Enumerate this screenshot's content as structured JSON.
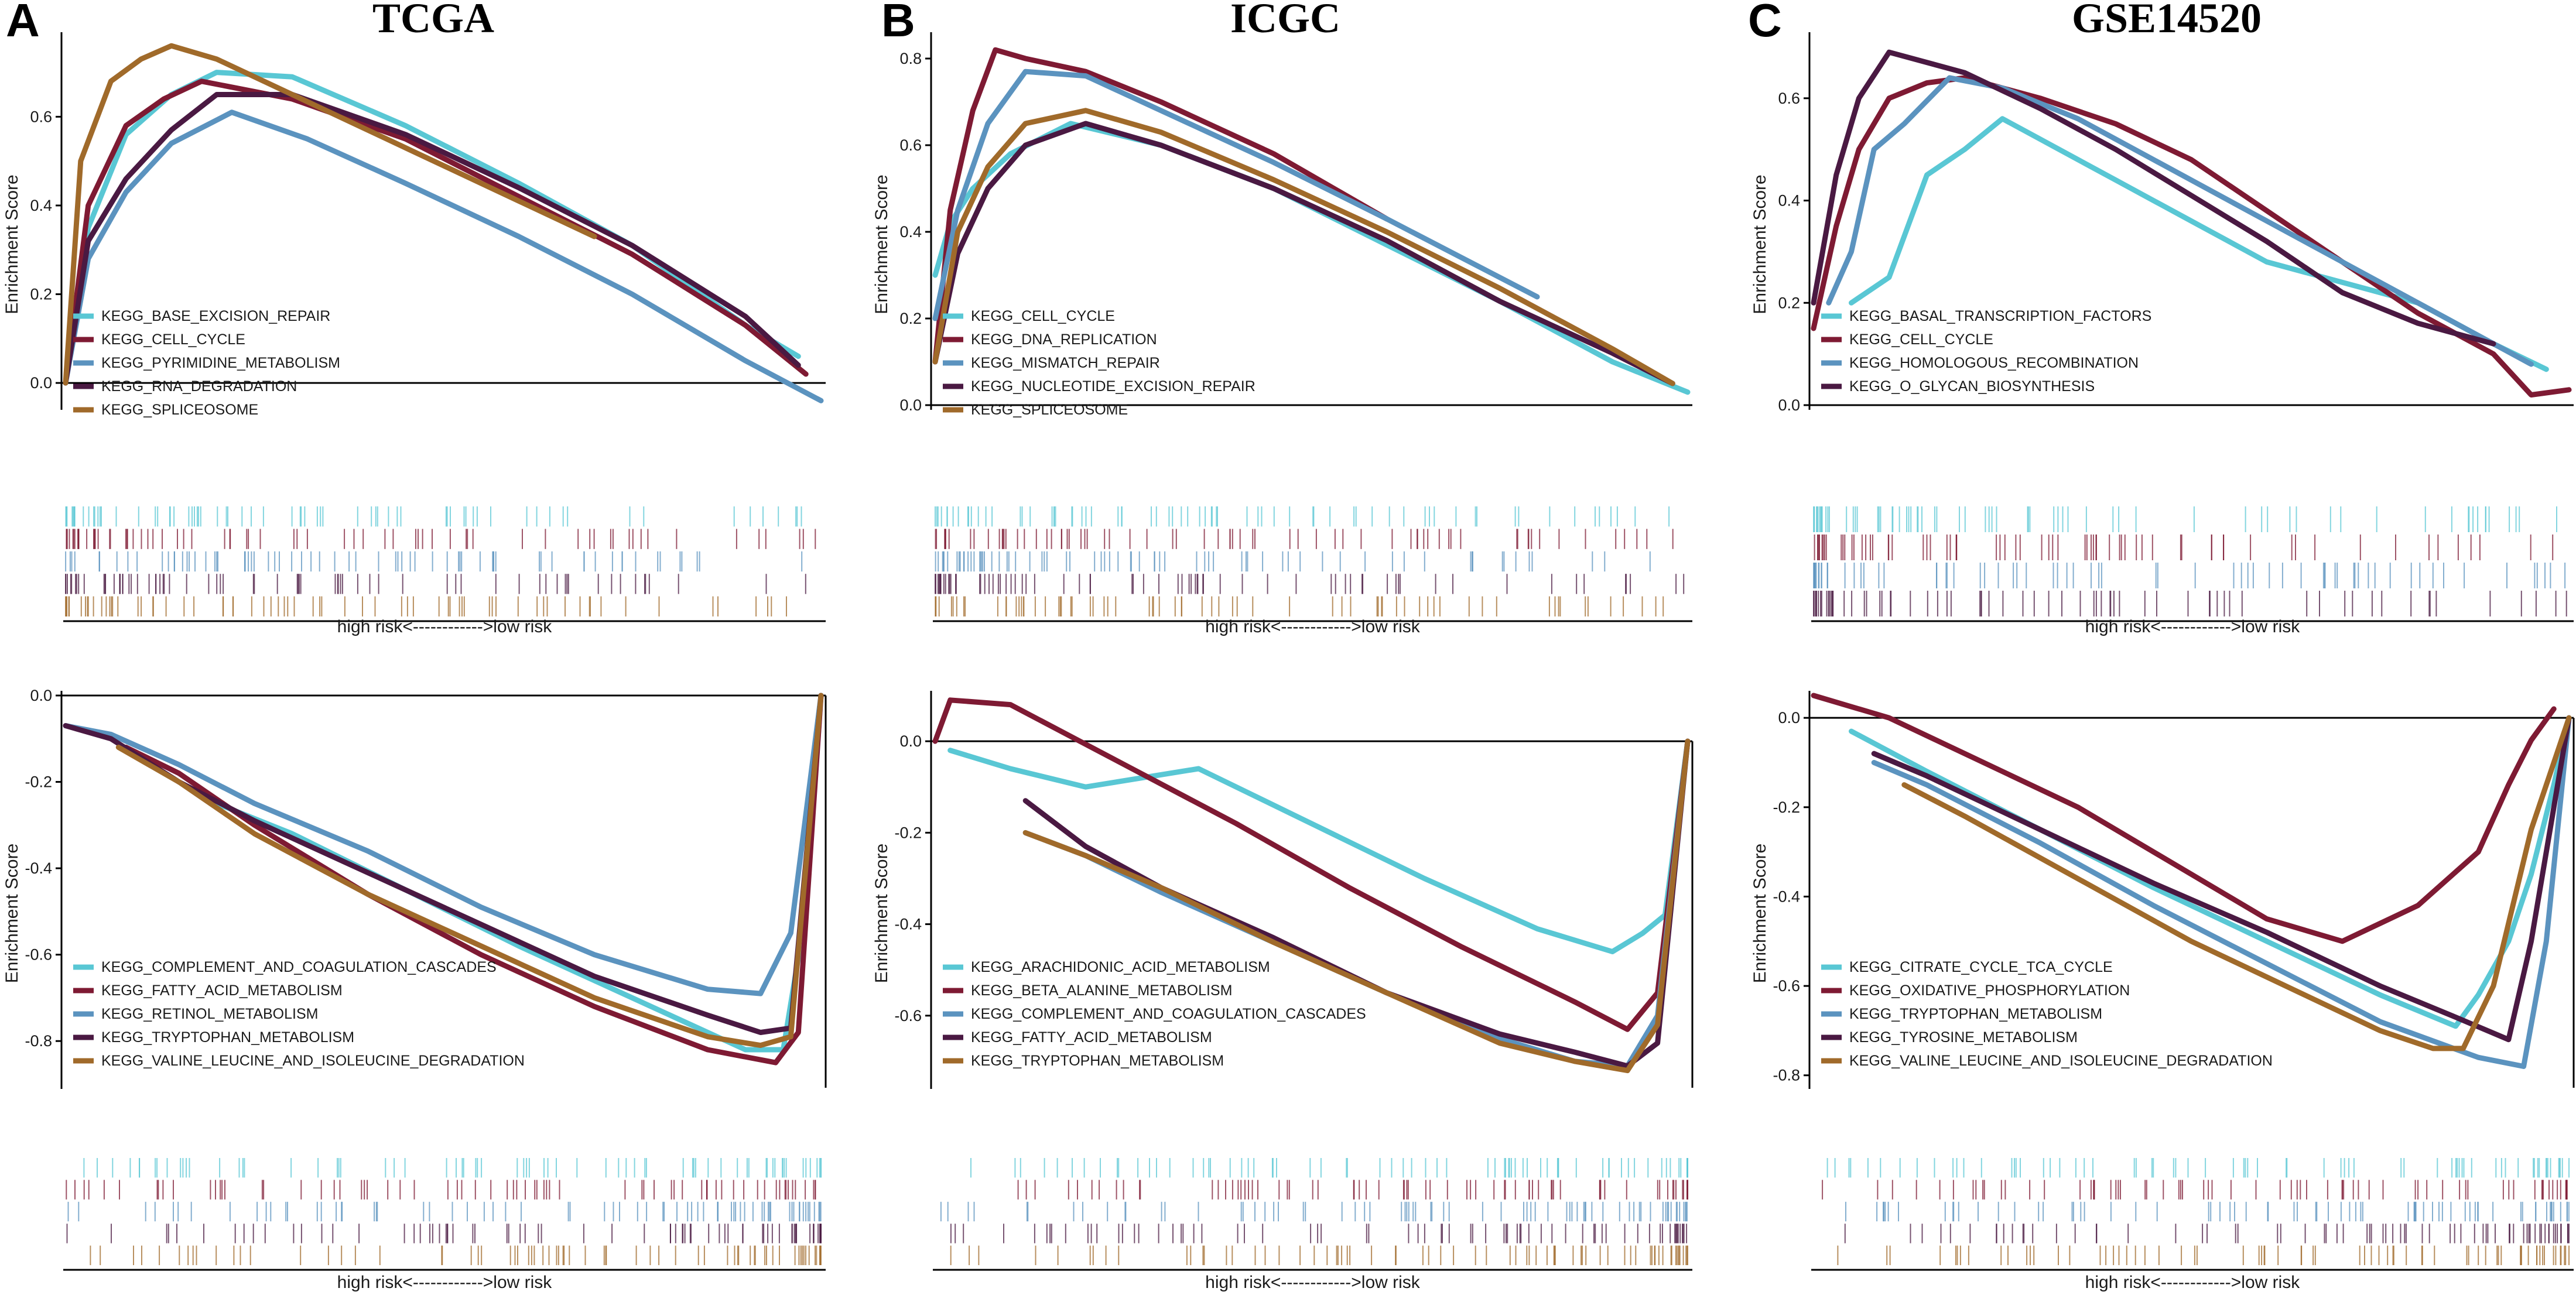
{
  "colors": {
    "cyan": "#59C7D4",
    "crimson": "#7E1A33",
    "steel": "#5B93BF",
    "plum": "#4A1942",
    "bronze": "#A06A2A"
  },
  "risk_label": "high risk<------------>low risk",
  "ylabel": "Enrichment Score",
  "panels": [
    {
      "letter": "A",
      "title": "TCGA"
    },
    {
      "letter": "B",
      "title": "ICGC"
    },
    {
      "letter": "C",
      "title": "GSE14520"
    }
  ],
  "chart_data": [
    {
      "type": "line",
      "panel": "A",
      "position": "top",
      "title": "TCGA",
      "xlabel": "",
      "ylabel": "Enrichment Score",
      "ylim": [
        -0.05,
        0.78
      ],
      "yticks": [
        0.0,
        0.2,
        0.4,
        0.6
      ],
      "legend": "bottom-left",
      "series": [
        {
          "name": "KEGG_BASE_EXCISION_REPAIR",
          "color": "cyan",
          "x": [
            0,
            0.03,
            0.08,
            0.14,
            0.2,
            0.3,
            0.45,
            0.6,
            0.75,
            0.9,
            0.97
          ],
          "y": [
            0.0,
            0.35,
            0.56,
            0.65,
            0.7,
            0.69,
            0.58,
            0.45,
            0.31,
            0.13,
            0.06
          ]
        },
        {
          "name": "KEGG_CELL_CYCLE",
          "color": "crimson",
          "x": [
            0,
            0.03,
            0.08,
            0.13,
            0.18,
            0.3,
            0.45,
            0.6,
            0.75,
            0.9,
            0.98
          ],
          "y": [
            0.0,
            0.4,
            0.58,
            0.64,
            0.68,
            0.64,
            0.55,
            0.42,
            0.29,
            0.13,
            0.02
          ]
        },
        {
          "name": "KEGG_PYRIMIDINE_METABOLISM",
          "color": "steel",
          "x": [
            0,
            0.03,
            0.08,
            0.14,
            0.22,
            0.32,
            0.45,
            0.6,
            0.75,
            0.9,
            1.0
          ],
          "y": [
            0.0,
            0.28,
            0.43,
            0.54,
            0.61,
            0.55,
            0.45,
            0.33,
            0.2,
            0.05,
            -0.04
          ]
        },
        {
          "name": "KEGG_RNA_DEGRADATION",
          "color": "plum",
          "x": [
            0,
            0.03,
            0.08,
            0.14,
            0.2,
            0.3,
            0.45,
            0.6,
            0.75,
            0.9,
            0.97
          ],
          "y": [
            0.0,
            0.32,
            0.46,
            0.57,
            0.65,
            0.65,
            0.56,
            0.44,
            0.31,
            0.15,
            0.04
          ]
        },
        {
          "name": "KEGG_SPLICEOSOME",
          "color": "bronze",
          "x": [
            0,
            0.02,
            0.06,
            0.1,
            0.14,
            0.2,
            0.3,
            0.45,
            0.6,
            0.7
          ],
          "y": [
            0.0,
            0.5,
            0.68,
            0.73,
            0.76,
            0.73,
            0.65,
            0.53,
            0.41,
            0.33
          ]
        }
      ]
    },
    {
      "type": "line",
      "panel": "A",
      "position": "bottom",
      "title": "",
      "xlabel": "high risk<------------>low risk",
      "ylabel": "Enrichment Score",
      "ylim": [
        -0.9,
        0.0
      ],
      "yticks": [
        0.0,
        -0.2,
        -0.4,
        -0.6,
        -0.8
      ],
      "legend": "bottom-left",
      "series": [
        {
          "name": "KEGG_COMPLEMENT_AND_COAGULATION_CASCADES",
          "color": "cyan",
          "x": [
            0.2,
            0.3,
            0.45,
            0.6,
            0.75,
            0.85,
            0.9,
            0.95,
            0.98,
            1.0
          ],
          "y": [
            -0.25,
            -0.32,
            -0.45,
            -0.58,
            -0.7,
            -0.78,
            -0.82,
            -0.82,
            -0.5,
            0.0
          ]
        },
        {
          "name": "KEGG_FATTY_ACID_METABOLISM",
          "color": "crimson",
          "x": [
            0.08,
            0.15,
            0.25,
            0.4,
            0.55,
            0.7,
            0.85,
            0.94,
            0.97,
            1.0
          ],
          "y": [
            -0.12,
            -0.18,
            -0.3,
            -0.46,
            -0.6,
            -0.72,
            -0.82,
            -0.85,
            -0.78,
            0.0
          ]
        },
        {
          "name": "KEGG_RETINOL_METABOLISM",
          "color": "steel",
          "x": [
            0.0,
            0.06,
            0.15,
            0.25,
            0.4,
            0.55,
            0.7,
            0.85,
            0.92,
            0.96,
            1.0
          ],
          "y": [
            -0.07,
            -0.09,
            -0.16,
            -0.25,
            -0.36,
            -0.49,
            -0.6,
            -0.68,
            -0.69,
            -0.55,
            0.0
          ]
        },
        {
          "name": "KEGG_TRYPTOPHAN_METABOLISM",
          "color": "plum",
          "x": [
            0.0,
            0.06,
            0.15,
            0.25,
            0.4,
            0.55,
            0.7,
            0.85,
            0.92,
            0.96,
            1.0
          ],
          "y": [
            -0.07,
            -0.1,
            -0.2,
            -0.29,
            -0.41,
            -0.53,
            -0.65,
            -0.74,
            -0.78,
            -0.77,
            0.0
          ]
        },
        {
          "name": "KEGG_VALINE_LEUCINE_AND_ISOLEUCINE_DEGRADATION",
          "color": "bronze",
          "x": [
            0.07,
            0.15,
            0.25,
            0.4,
            0.55,
            0.7,
            0.85,
            0.92,
            0.96,
            1.0
          ],
          "y": [
            -0.12,
            -0.2,
            -0.32,
            -0.46,
            -0.58,
            -0.7,
            -0.79,
            -0.81,
            -0.79,
            0.0
          ]
        }
      ]
    },
    {
      "type": "line",
      "panel": "B",
      "position": "top",
      "title": "ICGC",
      "xlabel": "",
      "ylabel": "Enrichment Score",
      "ylim": [
        0.0,
        0.85
      ],
      "yticks": [
        0.0,
        0.2,
        0.4,
        0.6,
        0.8
      ],
      "legend": "bottom-left",
      "series": [
        {
          "name": "KEGG_CELL_CYCLE",
          "color": "cyan",
          "x": [
            0,
            0.02,
            0.05,
            0.1,
            0.18,
            0.3,
            0.45,
            0.6,
            0.75,
            0.9,
            1.0
          ],
          "y": [
            0.3,
            0.42,
            0.5,
            0.58,
            0.65,
            0.6,
            0.5,
            0.37,
            0.24,
            0.1,
            0.03
          ]
        },
        {
          "name": "KEGG_DNA_REPLICATION",
          "color": "crimson",
          "x": [
            0,
            0.02,
            0.05,
            0.08,
            0.12,
            0.2,
            0.3,
            0.45,
            0.6
          ],
          "y": [
            0.1,
            0.45,
            0.68,
            0.82,
            0.8,
            0.77,
            0.7,
            0.58,
            0.43
          ]
        },
        {
          "name": "KEGG_MISMATCH_REPAIR",
          "color": "steel",
          "x": [
            0,
            0.03,
            0.07,
            0.12,
            0.2,
            0.3,
            0.45,
            0.6,
            0.8
          ],
          "y": [
            0.2,
            0.45,
            0.65,
            0.77,
            0.76,
            0.68,
            0.56,
            0.43,
            0.25
          ]
        },
        {
          "name": "KEGG_NUCLEOTIDE_EXCISION_REPAIR",
          "color": "plum",
          "x": [
            0,
            0.03,
            0.07,
            0.12,
            0.2,
            0.3,
            0.45,
            0.6,
            0.75,
            0.9,
            0.98
          ],
          "y": [
            0.1,
            0.35,
            0.5,
            0.6,
            0.65,
            0.6,
            0.5,
            0.38,
            0.24,
            0.12,
            0.05
          ]
        },
        {
          "name": "KEGG_SPLICEOSOME",
          "color": "bronze",
          "x": [
            0,
            0.03,
            0.07,
            0.12,
            0.2,
            0.3,
            0.45,
            0.6,
            0.75,
            0.9,
            0.98
          ],
          "y": [
            0.1,
            0.4,
            0.55,
            0.65,
            0.68,
            0.63,
            0.52,
            0.4,
            0.27,
            0.13,
            0.05
          ]
        }
      ]
    },
    {
      "type": "line",
      "panel": "B",
      "position": "bottom",
      "title": "",
      "xlabel": "high risk<------------>low risk",
      "ylabel": "Enrichment Score",
      "ylim": [
        -0.75,
        0.1
      ],
      "yticks": [
        0.0,
        -0.2,
        -0.4,
        -0.6
      ],
      "legend": "bottom-left",
      "series": [
        {
          "name": "KEGG_ARACHIDONIC_ACID_METABOLISM",
          "color": "cyan",
          "x": [
            0.02,
            0.1,
            0.2,
            0.35,
            0.5,
            0.65,
            0.8,
            0.9,
            0.94,
            0.97,
            1.0
          ],
          "y": [
            -0.02,
            -0.06,
            -0.1,
            -0.06,
            -0.18,
            -0.3,
            -0.41,
            -0.46,
            -0.42,
            -0.38,
            0.0
          ]
        },
        {
          "name": "KEGG_BETA_ALANINE_METABOLISM",
          "color": "crimson",
          "x": [
            0.0,
            0.02,
            0.1,
            0.25,
            0.4,
            0.55,
            0.7,
            0.85,
            0.92,
            0.96,
            1.0
          ],
          "y": [
            0.0,
            0.09,
            0.08,
            -0.05,
            -0.18,
            -0.32,
            -0.45,
            -0.57,
            -0.63,
            -0.55,
            0.0
          ]
        },
        {
          "name": "KEGG_COMPLEMENT_AND_COAGULATION_CASCADES",
          "color": "steel",
          "x": [
            0.12,
            0.2,
            0.3,
            0.45,
            0.6,
            0.75,
            0.85,
            0.92,
            0.96,
            1.0
          ],
          "y": [
            -0.2,
            -0.25,
            -0.33,
            -0.44,
            -0.55,
            -0.65,
            -0.7,
            -0.71,
            -0.6,
            0.0
          ]
        },
        {
          "name": "KEGG_FATTY_ACID_METABOLISM",
          "color": "plum",
          "x": [
            0.12,
            0.2,
            0.3,
            0.45,
            0.6,
            0.75,
            0.85,
            0.92,
            0.96,
            1.0
          ],
          "y": [
            -0.13,
            -0.23,
            -0.32,
            -0.43,
            -0.55,
            -0.64,
            -0.68,
            -0.71,
            -0.66,
            0.0
          ]
        },
        {
          "name": "KEGG_TRYPTOPHAN_METABOLISM",
          "color": "bronze",
          "x": [
            0.12,
            0.2,
            0.3,
            0.45,
            0.6,
            0.75,
            0.85,
            0.92,
            0.96,
            1.0
          ],
          "y": [
            -0.2,
            -0.25,
            -0.32,
            -0.44,
            -0.55,
            -0.66,
            -0.7,
            -0.72,
            -0.62,
            0.0
          ]
        }
      ]
    },
    {
      "type": "line",
      "panel": "C",
      "position": "top",
      "title": "GSE14520",
      "xlabel": "",
      "ylabel": "Enrichment Score",
      "ylim": [
        0.0,
        0.72
      ],
      "yticks": [
        0.0,
        0.2,
        0.4,
        0.6
      ],
      "legend": "bottom-left",
      "series": [
        {
          "name": "KEGG_BASAL_TRANSCRIPTION_FACTORS",
          "color": "cyan",
          "x": [
            0.05,
            0.1,
            0.15,
            0.2,
            0.25,
            0.3,
            0.4,
            0.5,
            0.6,
            0.7,
            0.8,
            0.9,
            0.97
          ],
          "y": [
            0.2,
            0.25,
            0.45,
            0.5,
            0.56,
            0.52,
            0.44,
            0.36,
            0.28,
            0.24,
            0.2,
            0.12,
            0.07
          ]
        },
        {
          "name": "KEGG_CELL_CYCLE",
          "color": "crimson",
          "x": [
            0,
            0.03,
            0.06,
            0.1,
            0.15,
            0.2,
            0.25,
            0.3,
            0.4,
            0.5,
            0.6,
            0.7,
            0.8,
            0.9,
            0.95,
            1.0
          ],
          "y": [
            0.15,
            0.35,
            0.5,
            0.6,
            0.63,
            0.64,
            0.62,
            0.6,
            0.55,
            0.48,
            0.38,
            0.28,
            0.18,
            0.1,
            0.02,
            0.03
          ]
        },
        {
          "name": "KEGG_HOMOLOGOUS_RECOMBINATION",
          "color": "steel",
          "x": [
            0.02,
            0.05,
            0.08,
            0.12,
            0.18,
            0.25,
            0.35,
            0.45,
            0.55,
            0.65,
            0.75,
            0.85,
            0.95
          ],
          "y": [
            0.2,
            0.3,
            0.5,
            0.55,
            0.64,
            0.62,
            0.56,
            0.48,
            0.4,
            0.32,
            0.24,
            0.16,
            0.08
          ]
        },
        {
          "name": "KEGG_O_GLYCAN_BIOSYNTHESIS",
          "color": "plum",
          "x": [
            0,
            0.03,
            0.06,
            0.1,
            0.2,
            0.3,
            0.4,
            0.5,
            0.6,
            0.7,
            0.8,
            0.9
          ],
          "y": [
            0.2,
            0.45,
            0.6,
            0.69,
            0.65,
            0.58,
            0.5,
            0.41,
            0.32,
            0.22,
            0.16,
            0.12
          ]
        }
      ]
    },
    {
      "type": "line",
      "panel": "C",
      "position": "bottom",
      "title": "",
      "xlabel": "high risk<------------>low risk",
      "ylabel": "Enrichment Score",
      "ylim": [
        -0.82,
        0.05
      ],
      "yticks": [
        0.0,
        -0.2,
        -0.4,
        -0.6,
        -0.8
      ],
      "legend": "bottom-left",
      "series": [
        {
          "name": "KEGG_CITRATE_CYCLE_TCA_CYCLE",
          "color": "cyan",
          "x": [
            0.05,
            0.15,
            0.3,
            0.45,
            0.6,
            0.75,
            0.85,
            0.88,
            0.92,
            0.95,
            0.98,
            1.0
          ],
          "y": [
            -0.03,
            -0.12,
            -0.25,
            -0.38,
            -0.5,
            -0.62,
            -0.69,
            -0.62,
            -0.5,
            -0.35,
            -0.15,
            0.0
          ]
        },
        {
          "name": "KEGG_OXIDATIVE_PHOSPHORYLATION",
          "color": "crimson",
          "x": [
            0.0,
            0.1,
            0.2,
            0.35,
            0.5,
            0.6,
            0.7,
            0.8,
            0.88,
            0.92,
            0.95,
            0.98
          ],
          "y": [
            0.05,
            0.0,
            -0.08,
            -0.2,
            -0.35,
            -0.45,
            -0.5,
            -0.42,
            -0.3,
            -0.15,
            -0.05,
            0.02
          ]
        },
        {
          "name": "KEGG_TRYPTOPHAN_METABOLISM",
          "color": "steel",
          "x": [
            0.08,
            0.15,
            0.3,
            0.45,
            0.6,
            0.75,
            0.88,
            0.94,
            0.97,
            1.0
          ],
          "y": [
            -0.1,
            -0.15,
            -0.28,
            -0.42,
            -0.55,
            -0.68,
            -0.76,
            -0.78,
            -0.5,
            0.0
          ]
        },
        {
          "name": "KEGG_TYROSINE_METABOLISM",
          "color": "plum",
          "x": [
            0.08,
            0.15,
            0.3,
            0.45,
            0.6,
            0.75,
            0.85,
            0.92,
            0.95,
            0.98,
            1.0
          ],
          "y": [
            -0.08,
            -0.13,
            -0.25,
            -0.37,
            -0.48,
            -0.6,
            -0.67,
            -0.72,
            -0.5,
            -0.2,
            0.0
          ]
        },
        {
          "name": "KEGG_VALINE_LEUCINE_AND_ISOLEUCINE_DEGRADATION",
          "color": "bronze",
          "x": [
            0.12,
            0.2,
            0.35,
            0.5,
            0.65,
            0.75,
            0.82,
            0.86,
            0.9,
            0.95,
            1.0
          ],
          "y": [
            -0.15,
            -0.22,
            -0.36,
            -0.5,
            -0.62,
            -0.7,
            -0.74,
            -0.74,
            -0.6,
            -0.25,
            0.0
          ]
        }
      ]
    }
  ]
}
